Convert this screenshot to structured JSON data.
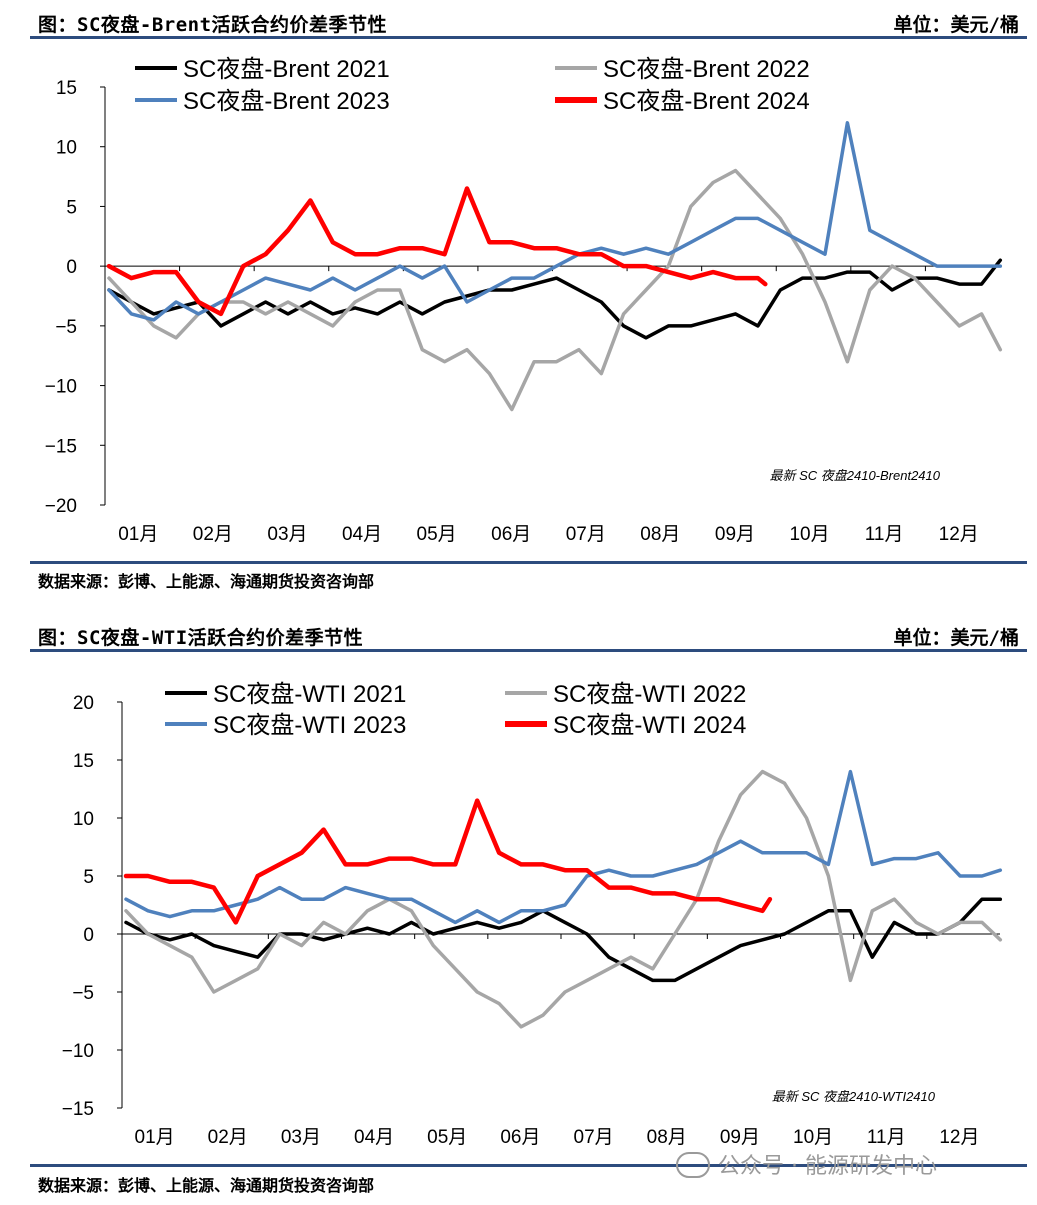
{
  "panels": [
    {
      "title": "图：SC夜盘-Brent活跃合约价差季节性",
      "unit": "单位：美元/桶",
      "source": "数据来源：彭博、上能源、海通期货投资咨询部"
    },
    {
      "title": "图：SC夜盘-WTI活跃合约价差季节性",
      "unit": "单位：美元/桶",
      "source": "数据来源：彭博、上能源、海通期货投资咨询部"
    }
  ],
  "watermark": "公众号 · 能源研发中心",
  "colors": {
    "y2021": "#000000",
    "y2022": "#a6a6a6",
    "y2023": "#4f81bd",
    "y2024": "#ff0000",
    "rule": "#2d4c7e"
  },
  "chart_data": [
    {
      "type": "line",
      "title": "",
      "xlabel": "",
      "ylabel": "",
      "categories": [
        "01月",
        "02月",
        "03月",
        "04月",
        "05月",
        "06月",
        "07月",
        "08月",
        "09月",
        "10月",
        "11月",
        "12月"
      ],
      "ylim": [
        -20,
        15
      ],
      "yticks": [
        15,
        10,
        5,
        0,
        -5,
        -10,
        -15,
        -20
      ],
      "annotation": "最新 SC 夜盘2410-Brent2410",
      "legend": "top",
      "series": [
        {
          "name": "SC夜盘-Brent 2021",
          "x": [
            0,
            0.3,
            0.6,
            0.9,
            1.2,
            1.5,
            1.8,
            2.1,
            2.4,
            2.7,
            3,
            3.3,
            3.6,
            3.9,
            4.2,
            4.5,
            4.8,
            5.1,
            5.4,
            5.7,
            6,
            6.3,
            6.6,
            6.9,
            7.2,
            7.5,
            7.8,
            8.1,
            8.4,
            8.7,
            9,
            9.3,
            9.6,
            9.9,
            10.2,
            10.5,
            10.8,
            11.1,
            11.4,
            11.7,
            11.95
          ],
          "values": [
            -2,
            -3,
            -4,
            -3.5,
            -3,
            -5,
            -4,
            -3,
            -4,
            -3,
            -4,
            -3.5,
            -4,
            -3,
            -4,
            -3,
            -2.5,
            -2,
            -2,
            -1.5,
            -1,
            -2,
            -3,
            -5,
            -6,
            -5,
            -5,
            -4.5,
            -4,
            -5,
            -2,
            -1,
            -1,
            -0.5,
            -0.5,
            -2,
            -1,
            -1,
            -1.5,
            -1.5,
            0.5
          ]
        },
        {
          "name": "SC夜盘-Brent 2022",
          "x": [
            0,
            0.3,
            0.6,
            0.9,
            1.2,
            1.5,
            1.8,
            2.1,
            2.4,
            2.7,
            3,
            3.3,
            3.6,
            3.9,
            4.2,
            4.5,
            4.8,
            5.1,
            5.4,
            5.7,
            6,
            6.3,
            6.6,
            6.9,
            7.2,
            7.5,
            7.8,
            8.1,
            8.4,
            8.7,
            9,
            9.3,
            9.6,
            9.9,
            10.2,
            10.5,
            10.8,
            11.1,
            11.4,
            11.7,
            11.95
          ],
          "values": [
            -1,
            -3,
            -5,
            -6,
            -4,
            -3,
            -3,
            -4,
            -3,
            -4,
            -5,
            -3,
            -2,
            -2,
            -7,
            -8,
            -7,
            -9,
            -12,
            -8,
            -8,
            -7,
            -9,
            -4,
            -2,
            0,
            5,
            7,
            8,
            6,
            4,
            1,
            -3,
            -8,
            -2,
            0,
            -1,
            -3,
            -5,
            -4,
            -7
          ]
        },
        {
          "name": "SC夜盘-Brent 2023",
          "x": [
            0,
            0.3,
            0.6,
            0.9,
            1.2,
            1.5,
            1.8,
            2.1,
            2.4,
            2.7,
            3,
            3.3,
            3.6,
            3.9,
            4.2,
            4.5,
            4.8,
            5.1,
            5.4,
            5.7,
            6,
            6.3,
            6.6,
            6.9,
            7.2,
            7.5,
            7.8,
            8.1,
            8.4,
            8.7,
            9,
            9.3,
            9.6,
            9.9,
            10.2,
            10.5,
            10.8,
            11.1,
            11.4,
            11.7,
            11.95
          ],
          "values": [
            -2,
            -4,
            -4.5,
            -3,
            -4,
            -3,
            -2,
            -1,
            -1.5,
            -2,
            -1,
            -2,
            -1,
            0,
            -1,
            0,
            -3,
            -2,
            -1,
            -1,
            0,
            1,
            1.5,
            1,
            1.5,
            1,
            2,
            3,
            4,
            4,
            3,
            2,
            1,
            12,
            3,
            2,
            1,
            0,
            0,
            0,
            0
          ]
        },
        {
          "name": "SC夜盘-Brent 2024",
          "x": [
            0,
            0.3,
            0.6,
            0.9,
            1.2,
            1.5,
            1.8,
            2.1,
            2.4,
            2.7,
            3,
            3.3,
            3.6,
            3.9,
            4.2,
            4.5,
            4.8,
            5.1,
            5.4,
            5.7,
            6,
            6.3,
            6.6,
            6.9,
            7.2,
            7.5,
            7.8,
            8.1,
            8.4,
            8.7,
            8.8
          ],
          "values": [
            0,
            -1,
            -0.5,
            -0.5,
            -3,
            -4,
            0,
            1,
            3,
            5.5,
            2,
            1,
            1,
            1.5,
            1.5,
            1,
            6.5,
            2,
            2,
            1.5,
            1.5,
            1,
            1,
            0,
            0,
            -0.5,
            -1,
            -0.5,
            -1,
            -1,
            -1.5
          ]
        }
      ]
    },
    {
      "type": "line",
      "title": "",
      "xlabel": "",
      "ylabel": "",
      "categories": [
        "01月",
        "02月",
        "03月",
        "04月",
        "05月",
        "06月",
        "07月",
        "08月",
        "09月",
        "10月",
        "11月",
        "12月"
      ],
      "ylim": [
        -15,
        20
      ],
      "yticks": [
        20,
        15,
        10,
        5,
        0,
        -5,
        -10,
        -15
      ],
      "annotation": "最新 SC 夜盘2410-WTI2410",
      "legend": "top",
      "series": [
        {
          "name": "SC夜盘-WTI 2021",
          "x": [
            0,
            0.3,
            0.6,
            0.9,
            1.2,
            1.5,
            1.8,
            2.1,
            2.4,
            2.7,
            3,
            3.3,
            3.6,
            3.9,
            4.2,
            4.5,
            4.8,
            5.1,
            5.4,
            5.7,
            6,
            6.3,
            6.6,
            6.9,
            7.2,
            7.5,
            7.8,
            8.1,
            8.4,
            8.7,
            9,
            9.3,
            9.6,
            9.9,
            10.2,
            10.5,
            10.8,
            11.1,
            11.4,
            11.7,
            11.95
          ],
          "values": [
            1,
            0,
            -0.5,
            0,
            -1,
            -1.5,
            -2,
            0,
            0,
            -0.5,
            0,
            0.5,
            0,
            1,
            0,
            0.5,
            1,
            0.5,
            1,
            2,
            1,
            0,
            -2,
            -3,
            -4,
            -4,
            -3,
            -2,
            -1,
            -0.5,
            0,
            1,
            2,
            2,
            -2,
            1,
            0,
            0,
            1,
            3,
            3
          ]
        },
        {
          "name": "SC夜盘-WTI 2022",
          "x": [
            0,
            0.3,
            0.6,
            0.9,
            1.2,
            1.5,
            1.8,
            2.1,
            2.4,
            2.7,
            3,
            3.3,
            3.6,
            3.9,
            4.2,
            4.5,
            4.8,
            5.1,
            5.4,
            5.7,
            6,
            6.3,
            6.6,
            6.9,
            7.2,
            7.5,
            7.8,
            8.1,
            8.4,
            8.7,
            9,
            9.3,
            9.6,
            9.9,
            10.2,
            10.5,
            10.8,
            11.1,
            11.4,
            11.7,
            11.95
          ],
          "values": [
            2,
            0,
            -1,
            -2,
            -5,
            -4,
            -3,
            0,
            -1,
            1,
            0,
            2,
            3,
            2,
            -1,
            -3,
            -5,
            -6,
            -8,
            -7,
            -5,
            -4,
            -3,
            -2,
            -3,
            0,
            3,
            8,
            12,
            14,
            13,
            10,
            5,
            -4,
            2,
            3,
            1,
            0,
            1,
            1,
            -0.5
          ]
        },
        {
          "name": "SC夜盘-WTI 2023",
          "x": [
            0,
            0.3,
            0.6,
            0.9,
            1.2,
            1.5,
            1.8,
            2.1,
            2.4,
            2.7,
            3,
            3.3,
            3.6,
            3.9,
            4.2,
            4.5,
            4.8,
            5.1,
            5.4,
            5.7,
            6,
            6.3,
            6.6,
            6.9,
            7.2,
            7.5,
            7.8,
            8.1,
            8.4,
            8.7,
            9,
            9.3,
            9.6,
            9.9,
            10.2,
            10.5,
            10.8,
            11.1,
            11.4,
            11.7,
            11.95
          ],
          "values": [
            3,
            2,
            1.5,
            2,
            2,
            2.5,
            3,
            4,
            3,
            3,
            4,
            3.5,
            3,
            3,
            2,
            1,
            2,
            1,
            2,
            2,
            2.5,
            5,
            5.5,
            5,
            5,
            5.5,
            6,
            7,
            8,
            7,
            7,
            7,
            6,
            14,
            6,
            6.5,
            6.5,
            7,
            5,
            5,
            5.5
          ]
        },
        {
          "name": "SC夜盘-WTI 2024",
          "x": [
            0,
            0.3,
            0.6,
            0.9,
            1.2,
            1.5,
            1.8,
            2.1,
            2.4,
            2.7,
            3,
            3.3,
            3.6,
            3.9,
            4.2,
            4.5,
            4.8,
            5.1,
            5.4,
            5.7,
            6,
            6.3,
            6.6,
            6.9,
            7.2,
            7.5,
            7.8,
            8.1,
            8.4,
            8.7,
            8.8
          ],
          "values": [
            5,
            5,
            4.5,
            4.5,
            4,
            1,
            5,
            6,
            7,
            9,
            6,
            6,
            6.5,
            6.5,
            6,
            6,
            11.5,
            7,
            6,
            6,
            5.5,
            5.5,
            4,
            4,
            3.5,
            3.5,
            3,
            3,
            2.5,
            2,
            3
          ]
        }
      ]
    }
  ]
}
